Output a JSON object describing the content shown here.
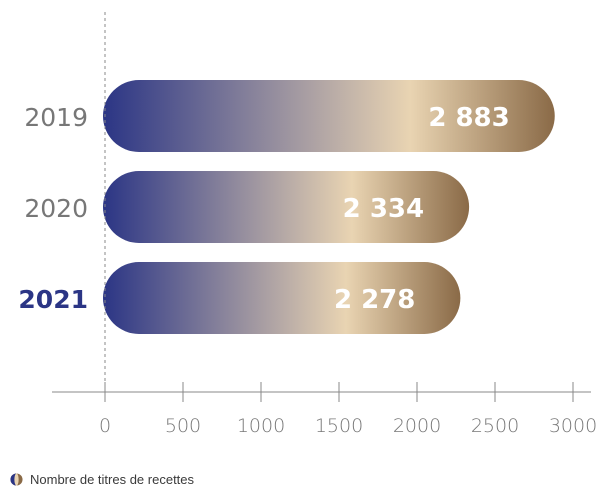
{
  "colors": {
    "gradient_start": "#2b3585",
    "gradient_mid": "#e9d4b2",
    "gradient_end": "#8a6a47",
    "highlight_label": "#2b3585",
    "muted_label": "#777777",
    "axis": "#888888",
    "value_text": "#ffffff"
  },
  "legend": {
    "label": "Nombre de titres de recettes",
    "icon": "half-circle-icon"
  },
  "chart_data": {
    "type": "bar",
    "orientation": "horizontal",
    "categories": [
      "2019",
      "2020",
      "2021"
    ],
    "values": [
      2883,
      2334,
      2278
    ],
    "value_labels": [
      "2 883",
      "2 334",
      "2 278"
    ],
    "highlighted_category": "2021",
    "xlim": [
      0,
      3000
    ],
    "x_ticks": [
      0,
      500,
      1000,
      1500,
      2000,
      2500,
      3000
    ],
    "x_tick_labels": [
      "0",
      "500",
      "1000",
      "1500",
      "2000",
      "2500",
      "3000"
    ],
    "zero_line": "dashed",
    "grid": false,
    "legend_position": "bottom-left",
    "series": [
      {
        "name": "Nombre de titres de recettes",
        "values": [
          2883,
          2334,
          2278
        ]
      }
    ]
  }
}
